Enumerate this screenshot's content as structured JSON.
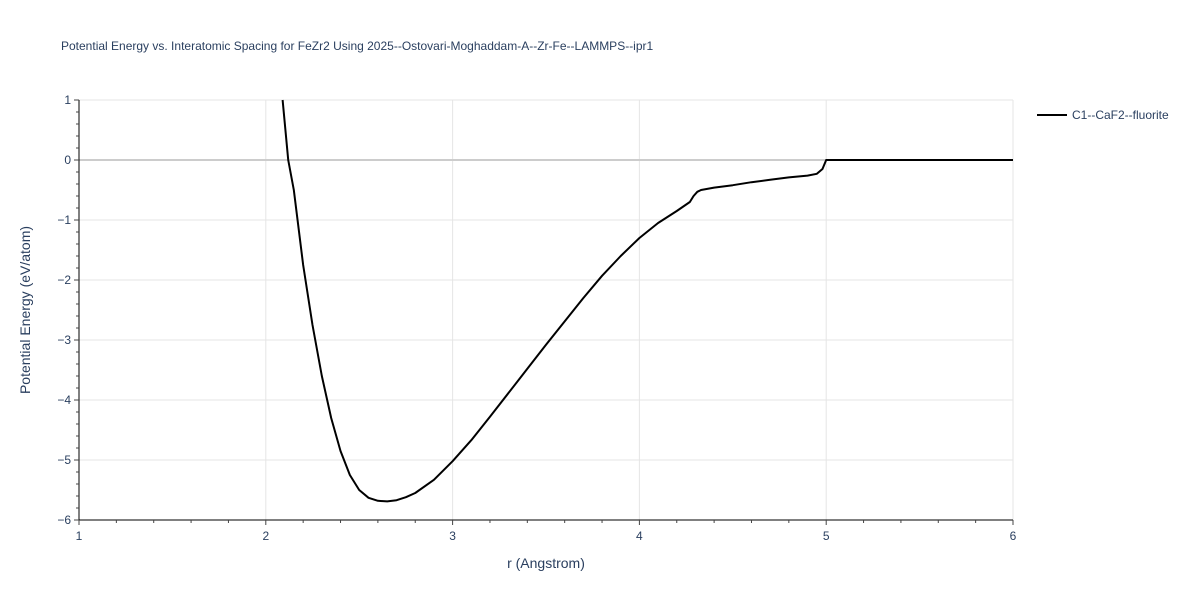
{
  "chart_data": {
    "type": "line",
    "title": "Potential Energy vs. Interatomic Spacing for FeZr2 Using 2025--Ostovari-Moghaddam-A--Zr-Fe--LAMMPS--ipr1",
    "xlabel": "r (Angstrom)",
    "ylabel": "Potential Energy (eV/atom)",
    "xlim": [
      1,
      6
    ],
    "ylim": [
      -6,
      1
    ],
    "x_ticks": [
      1,
      2,
      3,
      4,
      5,
      6
    ],
    "y_ticks": [
      1,
      0,
      -1,
      -2,
      -3,
      -4,
      -5,
      -6
    ],
    "x_tick_labels": [
      "1",
      "2",
      "3",
      "4",
      "5",
      "6"
    ],
    "y_tick_labels": [
      "1",
      "0",
      "−1",
      "−2",
      "−3",
      "−4",
      "−5",
      "−6"
    ],
    "grid": true,
    "legend_position": "top-right",
    "series": [
      {
        "name": "C1--CaF2--fluorite",
        "color": "#000000",
        "x": [
          2.09,
          2.12,
          2.15,
          2.2,
          2.25,
          2.3,
          2.35,
          2.4,
          2.45,
          2.5,
          2.55,
          2.6,
          2.65,
          2.7,
          2.75,
          2.8,
          2.9,
          3.0,
          3.1,
          3.2,
          3.3,
          3.4,
          3.5,
          3.6,
          3.7,
          3.8,
          3.9,
          4.0,
          4.1,
          4.2,
          4.27,
          4.29,
          4.31,
          4.33,
          4.4,
          4.5,
          4.6,
          4.7,
          4.8,
          4.9,
          4.95,
          4.98,
          5.0,
          5.2,
          5.5,
          6.0
        ],
        "y": [
          1.0,
          0.0,
          -0.5,
          -1.75,
          -2.75,
          -3.6,
          -4.3,
          -4.85,
          -5.25,
          -5.5,
          -5.63,
          -5.68,
          -5.69,
          -5.67,
          -5.62,
          -5.55,
          -5.33,
          -5.02,
          -4.67,
          -4.28,
          -3.88,
          -3.48,
          -3.08,
          -2.69,
          -2.3,
          -1.93,
          -1.6,
          -1.3,
          -1.05,
          -0.85,
          -0.7,
          -0.6,
          -0.53,
          -0.5,
          -0.46,
          -0.42,
          -0.37,
          -0.33,
          -0.29,
          -0.26,
          -0.23,
          -0.15,
          0.0,
          0.0,
          0.0,
          0.0
        ]
      }
    ]
  }
}
